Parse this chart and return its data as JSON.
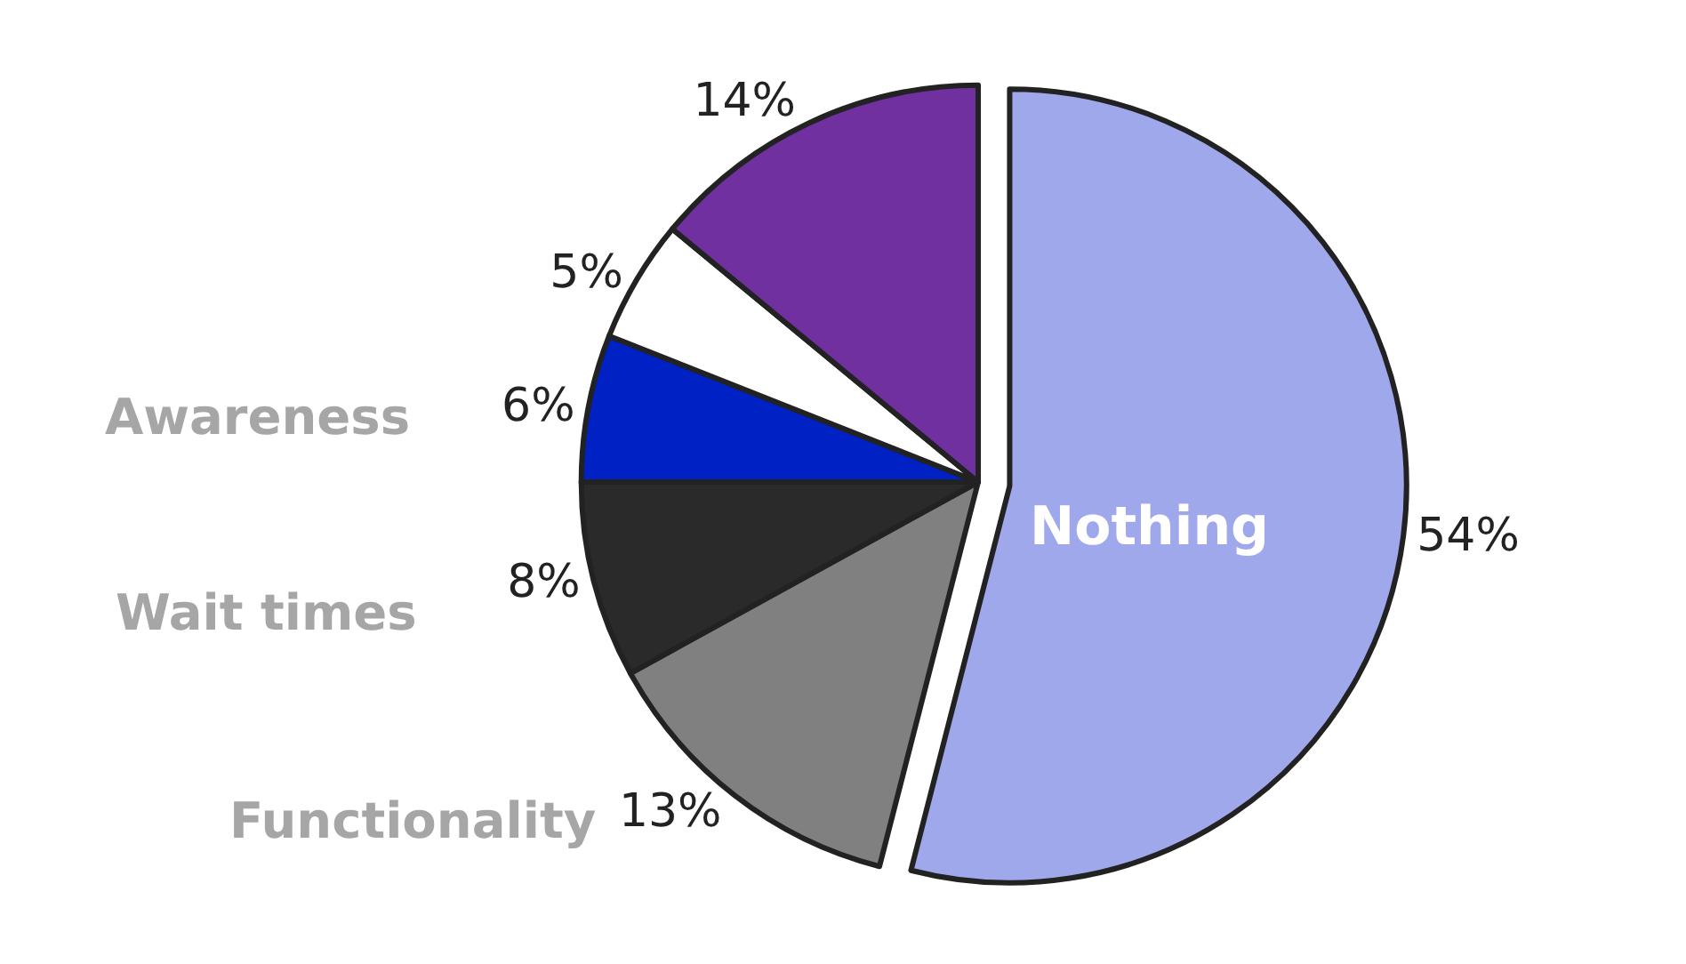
{
  "chart_data": {
    "type": "pie",
    "categories": [
      "Nothing",
      "Functionality",
      "Wait times",
      "Awareness",
      null,
      null
    ],
    "values": [
      54,
      13,
      8,
      6,
      5,
      14
    ],
    "value_labels": [
      "54%",
      "13%",
      "8%",
      "6%",
      "5%",
      "14%"
    ],
    "colors": [
      "#a0a8ec",
      "#808080",
      "#2a2a2a",
      "#0022c4",
      "#ffffff",
      "#7030a0"
    ],
    "legend": false
  }
}
